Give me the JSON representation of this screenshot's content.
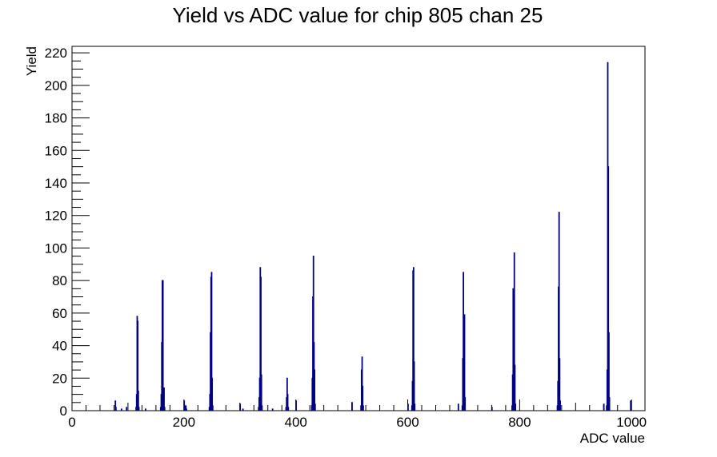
{
  "chart_data": {
    "type": "bar",
    "title": "Yield vs ADC value for chip 805 chan 25",
    "xlabel": "ADC value",
    "ylabel": "Yield",
    "xlim": [
      0,
      1024
    ],
    "ylim": [
      0,
      224
    ],
    "x_ticks": [
      0,
      200,
      400,
      600,
      800,
      1000
    ],
    "y_ticks": [
      0,
      20,
      40,
      60,
      80,
      100,
      120,
      140,
      160,
      180,
      200,
      220
    ],
    "grid": false,
    "legend": "none",
    "line_color": "#000080",
    "bins": [
      {
        "x": 77,
        "y": 6
      },
      {
        "x": 78,
        "y": 2
      },
      {
        "x": 88,
        "y": 1
      },
      {
        "x": 97,
        "y": 2
      },
      {
        "x": 114,
        "y": 2
      },
      {
        "x": 115,
        "y": 10
      },
      {
        "x": 116,
        "y": 58
      },
      {
        "x": 117,
        "y": 55
      },
      {
        "x": 118,
        "y": 12
      },
      {
        "x": 119,
        "y": 2
      },
      {
        "x": 131,
        "y": 1
      },
      {
        "x": 158,
        "y": 2
      },
      {
        "x": 159,
        "y": 10
      },
      {
        "x": 160,
        "y": 42
      },
      {
        "x": 161,
        "y": 80
      },
      {
        "x": 162,
        "y": 80
      },
      {
        "x": 163,
        "y": 8
      },
      {
        "x": 164,
        "y": 14
      },
      {
        "x": 165,
        "y": 2
      },
      {
        "x": 200,
        "y": 6
      },
      {
        "x": 201,
        "y": 2
      },
      {
        "x": 202,
        "y": 3
      },
      {
        "x": 203,
        "y": 3
      },
      {
        "x": 204,
        "y": 1
      },
      {
        "x": 245,
        "y": 2
      },
      {
        "x": 246,
        "y": 10
      },
      {
        "x": 247,
        "y": 48
      },
      {
        "x": 248,
        "y": 82
      },
      {
        "x": 249,
        "y": 85
      },
      {
        "x": 250,
        "y": 20
      },
      {
        "x": 251,
        "y": 3
      },
      {
        "x": 300,
        "y": 4
      },
      {
        "x": 305,
        "y": 1
      },
      {
        "x": 333,
        "y": 2
      },
      {
        "x": 334,
        "y": 8
      },
      {
        "x": 335,
        "y": 20
      },
      {
        "x": 336,
        "y": 88
      },
      {
        "x": 337,
        "y": 82
      },
      {
        "x": 338,
        "y": 22
      },
      {
        "x": 339,
        "y": 3
      },
      {
        "x": 358,
        "y": 1
      },
      {
        "x": 382,
        "y": 2
      },
      {
        "x": 383,
        "y": 8
      },
      {
        "x": 384,
        "y": 20
      },
      {
        "x": 385,
        "y": 10
      },
      {
        "x": 386,
        "y": 2
      },
      {
        "x": 400,
        "y": 6
      },
      {
        "x": 428,
        "y": 3
      },
      {
        "x": 429,
        "y": 20
      },
      {
        "x": 430,
        "y": 70
      },
      {
        "x": 431,
        "y": 95
      },
      {
        "x": 432,
        "y": 42
      },
      {
        "x": 433,
        "y": 25
      },
      {
        "x": 434,
        "y": 4
      },
      {
        "x": 500,
        "y": 5
      },
      {
        "x": 516,
        "y": 3
      },
      {
        "x": 517,
        "y": 25
      },
      {
        "x": 518,
        "y": 33
      },
      {
        "x": 519,
        "y": 15
      },
      {
        "x": 520,
        "y": 3
      },
      {
        "x": 600,
        "y": 4
      },
      {
        "x": 607,
        "y": 3
      },
      {
        "x": 608,
        "y": 18
      },
      {
        "x": 609,
        "y": 86
      },
      {
        "x": 610,
        "y": 88
      },
      {
        "x": 611,
        "y": 30
      },
      {
        "x": 612,
        "y": 4
      },
      {
        "x": 690,
        "y": 4
      },
      {
        "x": 697,
        "y": 3
      },
      {
        "x": 698,
        "y": 32
      },
      {
        "x": 699,
        "y": 85
      },
      {
        "x": 700,
        "y": 27
      },
      {
        "x": 701,
        "y": 59
      },
      {
        "x": 702,
        "y": 8
      },
      {
        "x": 750,
        "y": 2
      },
      {
        "x": 786,
        "y": 3
      },
      {
        "x": 787,
        "y": 22
      },
      {
        "x": 788,
        "y": 75
      },
      {
        "x": 789,
        "y": 70
      },
      {
        "x": 790,
        "y": 97
      },
      {
        "x": 791,
        "y": 28
      },
      {
        "x": 792,
        "y": 4
      },
      {
        "x": 867,
        "y": 3
      },
      {
        "x": 868,
        "y": 18
      },
      {
        "x": 869,
        "y": 76
      },
      {
        "x": 870,
        "y": 122
      },
      {
        "x": 871,
        "y": 32
      },
      {
        "x": 872,
        "y": 6
      },
      {
        "x": 950,
        "y": 4
      },
      {
        "x": 955,
        "y": 3
      },
      {
        "x": 956,
        "y": 25
      },
      {
        "x": 957,
        "y": 214
      },
      {
        "x": 958,
        "y": 150
      },
      {
        "x": 959,
        "y": 48
      },
      {
        "x": 960,
        "y": 8
      },
      {
        "x": 998,
        "y": 6
      }
    ]
  }
}
